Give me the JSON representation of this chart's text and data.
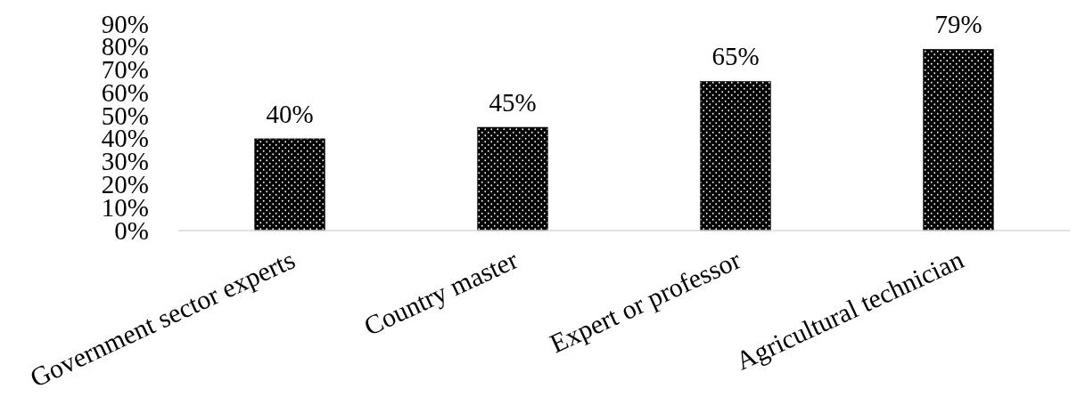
{
  "chart_data": {
    "type": "bar",
    "categories": [
      "Government sector experts",
      "Country master",
      "Expert or professor",
      "Agricultural technician"
    ],
    "values": [
      40,
      45,
      65,
      79
    ],
    "color": "#000000",
    "value_labels": [
      "40%",
      "45%",
      "65%",
      "79%"
    ],
    "ylim": [
      0,
      90
    ],
    "yticks": [
      {
        "value": 0,
        "label": "0%"
      },
      {
        "value": 10,
        "label": "10%"
      },
      {
        "value": 20,
        "label": "20%"
      },
      {
        "value": 30,
        "label": "30%"
      },
      {
        "value": 40,
        "label": "40%"
      },
      {
        "value": 50,
        "label": "50%"
      },
      {
        "value": 60,
        "label": "60%"
      },
      {
        "value": 70,
        "label": "70%"
      },
      {
        "value": 80,
        "label": "80%"
      },
      {
        "value": 90,
        "label": "90%"
      }
    ],
    "grid": false
  }
}
